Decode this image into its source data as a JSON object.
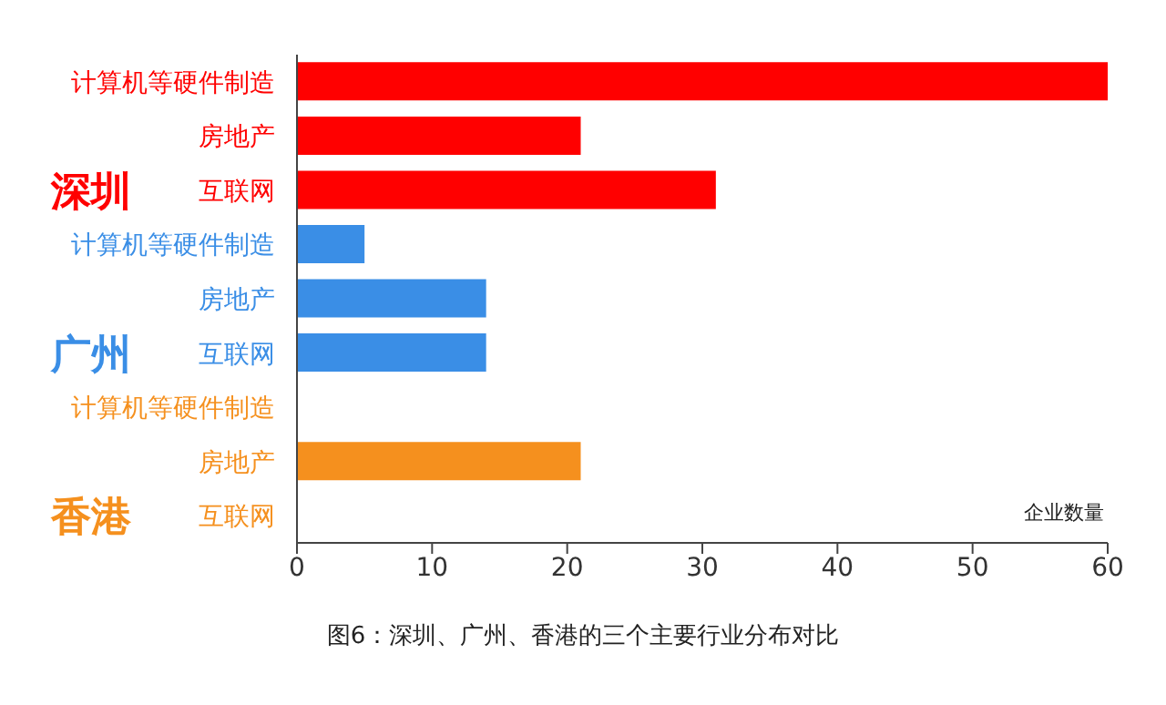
{
  "chart_data": {
    "type": "bar",
    "orientation": "horizontal",
    "categories": [
      "计算机等硬件制造",
      "房地产",
      "互联网",
      "计算机等硬件制造",
      "房地产",
      "互联网",
      "计算机等硬件制造",
      "房地产",
      "互联网"
    ],
    "values": [
      60,
      21,
      31,
      5,
      14,
      14,
      0,
      21,
      0
    ],
    "colors": [
      "#ff0000",
      "#ff0000",
      "#ff0000",
      "#3a8ee6",
      "#3a8ee6",
      "#3a8ee6",
      "#f5901e",
      "#f5901e",
      "#f5901e"
    ],
    "xlim": [
      0,
      60
    ],
    "xticks": [
      0,
      10,
      20,
      30,
      40,
      50,
      60
    ],
    "xlabel": "企业数量",
    "annotations": [
      "深圳",
      "广州",
      "香港",
      "图6：深圳、广州、香港的三个主要行业分布对比"
    ],
    "grid": false,
    "legend": false
  }
}
